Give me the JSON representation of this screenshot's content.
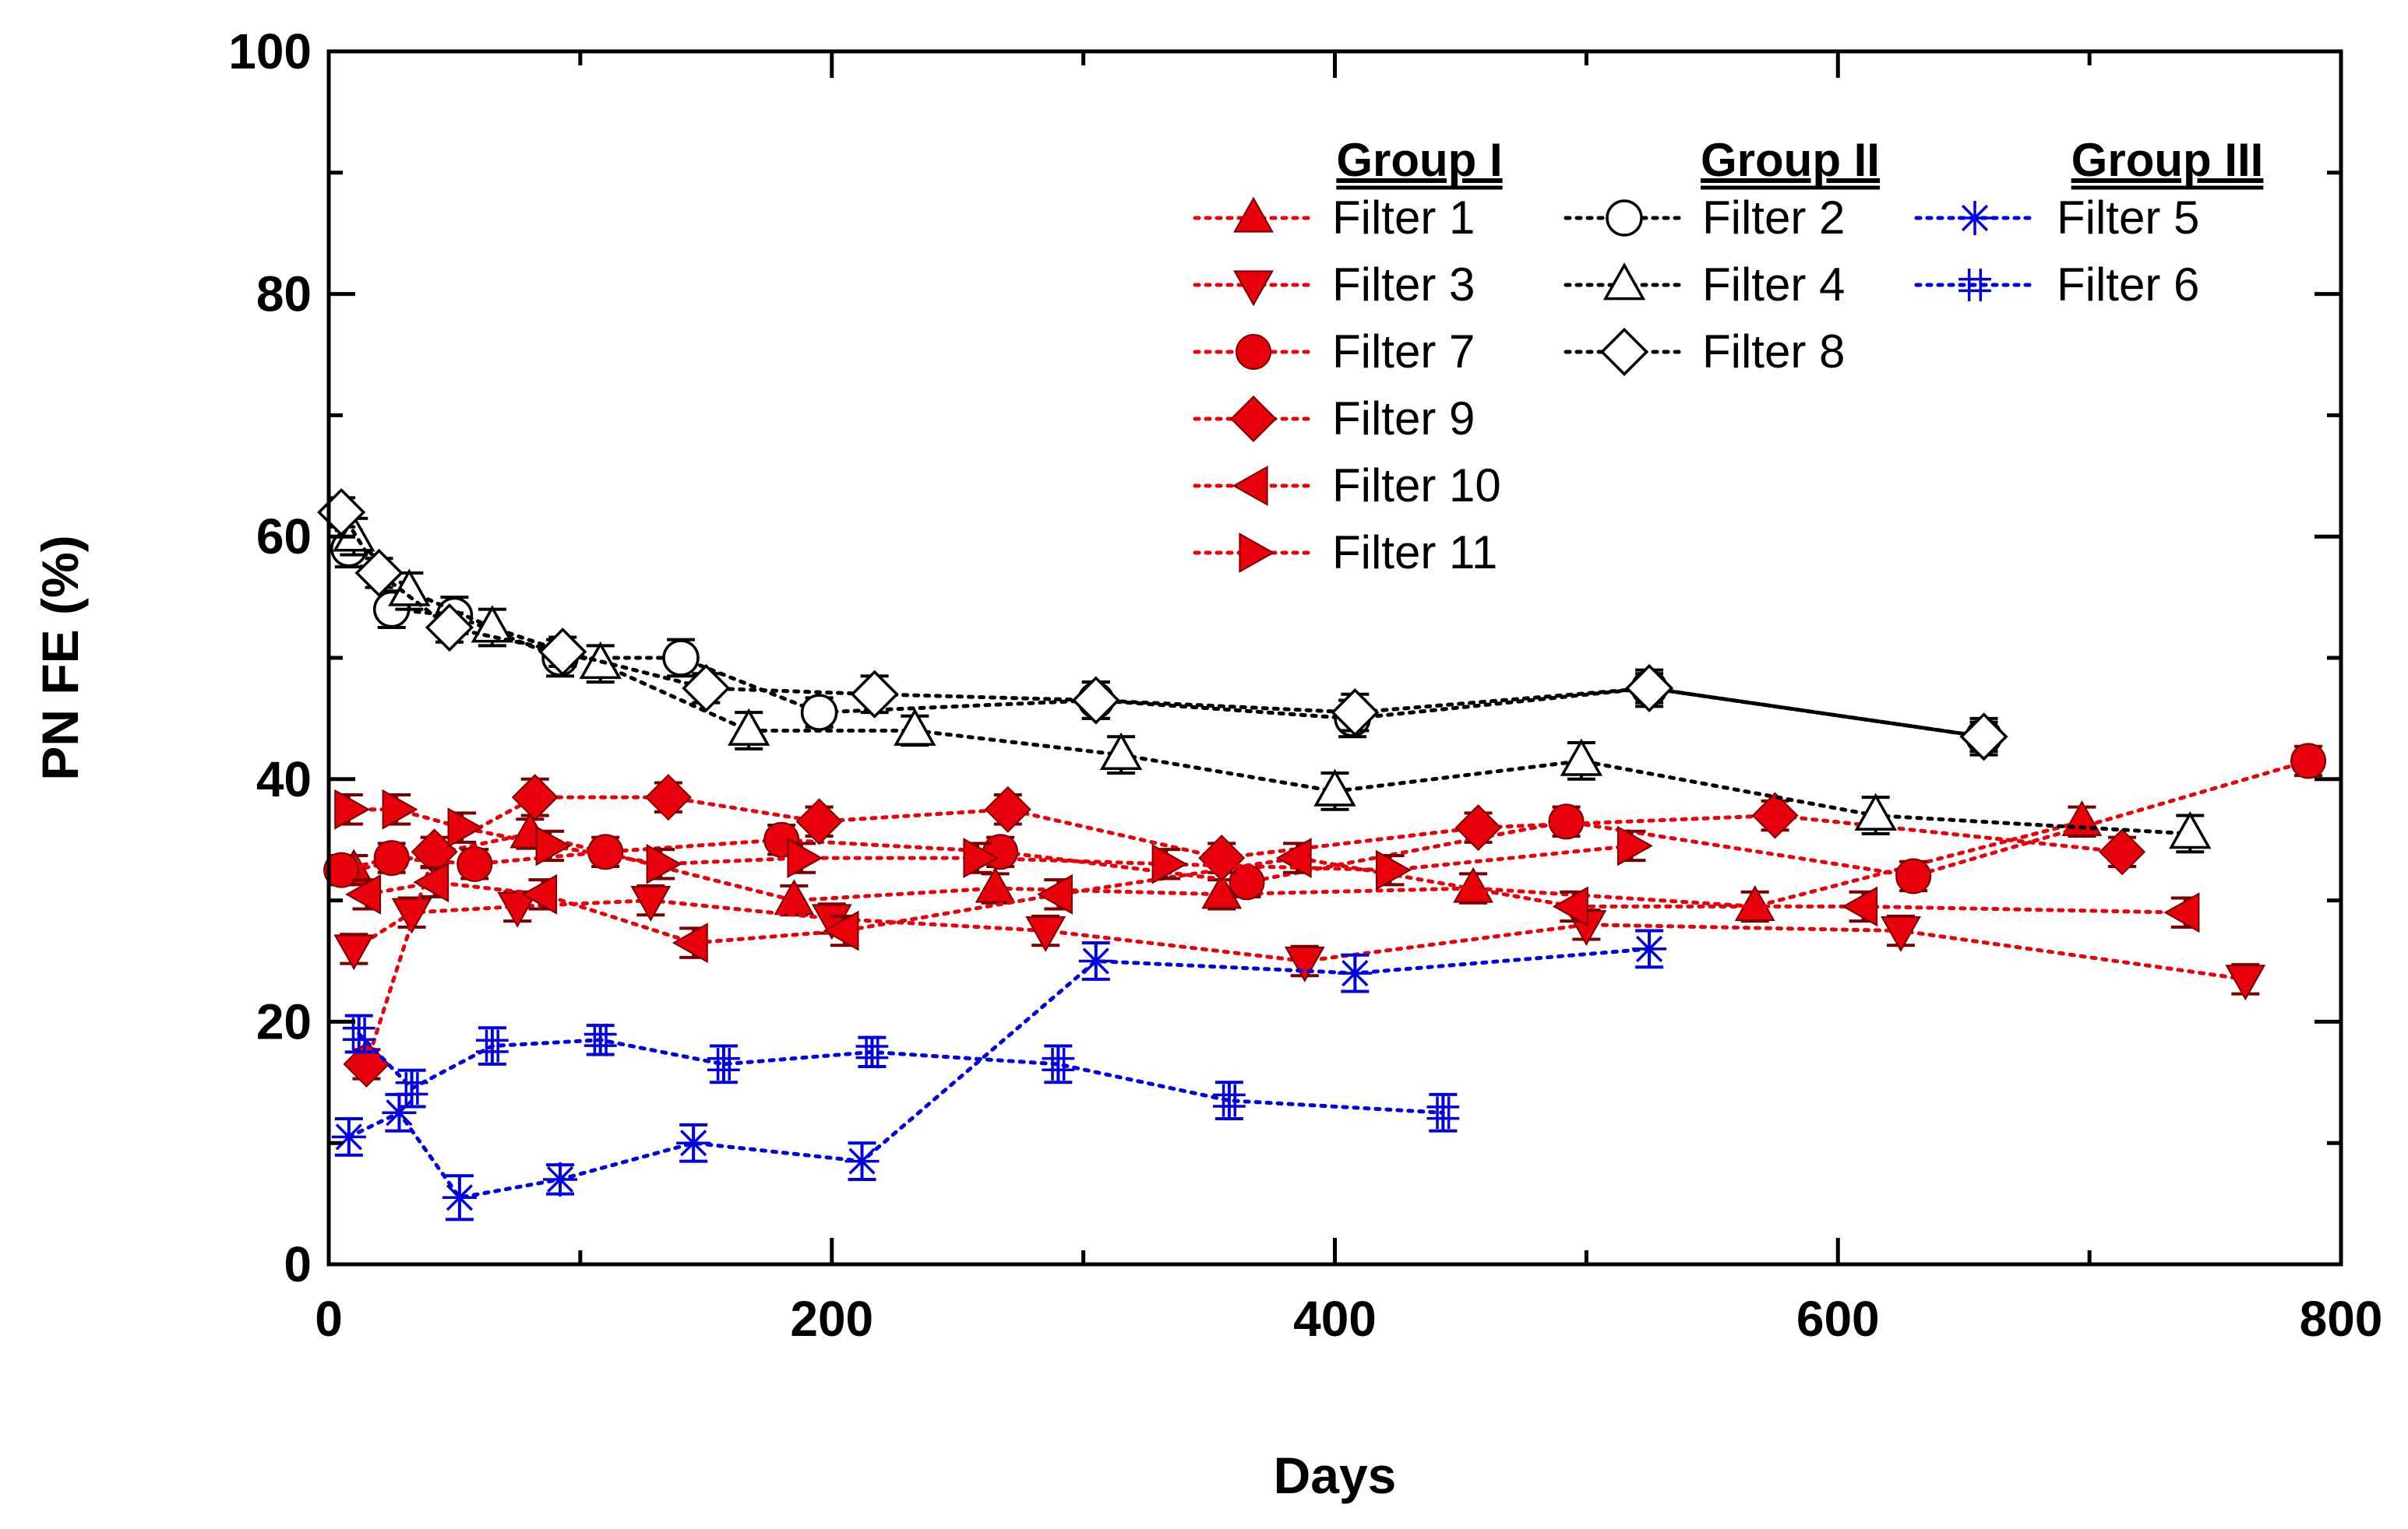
{
  "chart_data": {
    "type": "line",
    "title": "",
    "xlabel": "Days",
    "ylabel": "PN FE (%)",
    "xlim": [
      0,
      800
    ],
    "ylim": [
      0,
      100
    ],
    "x_ticks": [
      0,
      200,
      400,
      600,
      800
    ],
    "y_ticks": [
      0,
      20,
      40,
      60,
      80,
      100
    ],
    "x_tick_labels": [
      "0",
      "200",
      "400",
      "600",
      "800"
    ],
    "y_tick_labels": [
      "0",
      "20",
      "40",
      "60",
      "80",
      "100"
    ],
    "grid": false,
    "legend_position": "top-right",
    "groups": [
      {
        "name": "Group I",
        "series": [
          "Filter 1",
          "Filter 3",
          "Filter 7",
          "Filter 9",
          "Filter 10",
          "Filter 11"
        ]
      },
      {
        "name": "Group II",
        "series": [
          "Filter 2",
          "Filter 4",
          "Filter 8"
        ]
      },
      {
        "name": "Group III",
        "series": [
          "Filter 5",
          "Filter 6"
        ]
      }
    ],
    "series": [
      {
        "name": "Filter 1",
        "group": "Group I",
        "color": "#e8000b",
        "marker": "triangle-up",
        "filled": true,
        "x": [
          10,
          80,
          185,
          265,
          355,
          455,
          567,
          697
        ],
        "y": [
          32.5,
          35.5,
          30,
          31,
          30.5,
          31,
          29.5,
          36.5
        ],
        "err": [
          1.2,
          1.2,
          1.2,
          1.2,
          1.2,
          1.2,
          1.2,
          1.2
        ]
      },
      {
        "name": "Filter 3",
        "group": "Group I",
        "color": "#e8000b",
        "marker": "triangle-down",
        "filled": true,
        "x": [
          10,
          33,
          75,
          128,
          200,
          285,
          388,
          500,
          625,
          762
        ],
        "y": [
          26,
          29,
          29.5,
          30,
          28.5,
          27.5,
          25,
          28,
          27.5,
          23.5
        ],
        "err": [
          1.2,
          1.2,
          1.2,
          1.2,
          1.2,
          1.2,
          1.2,
          1.2,
          1.2,
          1.2
        ]
      },
      {
        "name": "Filter 7",
        "group": "Group I",
        "color": "#e8000b",
        "marker": "circle",
        "filled": true,
        "x": [
          5,
          25,
          58,
          110,
          180,
          267,
          365,
          492,
          630,
          787
        ],
        "y": [
          32.5,
          33.5,
          33,
          34,
          35,
          34,
          31.5,
          36.5,
          32,
          41.5
        ],
        "err": [
          1.2,
          1.2,
          1.2,
          1.2,
          1.2,
          1.2,
          1.2,
          1.2,
          1.2,
          1.2
        ]
      },
      {
        "name": "Filter 9",
        "group": "Group I",
        "color": "#e8000b",
        "marker": "diamond",
        "filled": true,
        "x": [
          15,
          42,
          82,
          135,
          195,
          270,
          355,
          457,
          575,
          713
        ],
        "y": [
          16.5,
          34,
          38.5,
          38.5,
          36.5,
          37.5,
          33.5,
          36,
          37,
          34
        ],
        "err": [
          1.2,
          1.2,
          1.5,
          1.2,
          1.2,
          1.2,
          1.2,
          1.2,
          1.2,
          1.2
        ]
      },
      {
        "name": "Filter 10",
        "group": "Group I",
        "color": "#e8000b",
        "marker": "triangle-left",
        "filled": true,
        "x": [
          15,
          42,
          85,
          145,
          205,
          290,
          385,
          495,
          610,
          738
        ],
        "y": [
          30.5,
          31.5,
          30.5,
          26.5,
          27.5,
          30.5,
          33.5,
          29.5,
          29.5,
          29
        ],
        "err": [
          1.2,
          1.2,
          1.2,
          1.2,
          1.2,
          1.2,
          1.2,
          1.2,
          1.2,
          1.2
        ]
      },
      {
        "name": "Filter 11",
        "group": "Group I",
        "color": "#e8000b",
        "marker": "triangle-right",
        "filled": true,
        "x": [
          8,
          27,
          53,
          88,
          132,
          188,
          258,
          333,
          422,
          518
        ],
        "y": [
          37.5,
          37.5,
          36,
          34.5,
          33,
          33.5,
          33.5,
          33,
          32.5,
          34.5
        ],
        "err": [
          1.2,
          1.2,
          1.2,
          1.2,
          1.2,
          1.2,
          1.2,
          1.2,
          1.2,
          1.2
        ]
      },
      {
        "name": "Filter 2",
        "group": "Group II",
        "color": "#000000",
        "marker": "circle",
        "filled": false,
        "x": [
          8,
          25,
          50,
          92,
          140,
          195,
          305,
          407,
          525,
          658
        ],
        "y": [
          59,
          54,
          53.5,
          50,
          50,
          45.5,
          46.5,
          45,
          47.5,
          43.5
        ],
        "err": [
          1.5,
          1.5,
          1.5,
          1.5,
          1.5,
          1.2,
          1.5,
          1.5,
          1.5,
          1.5
        ]
      },
      {
        "name": "Filter 4",
        "group": "Group II",
        "color": "#000000",
        "marker": "triangle-up",
        "filled": false,
        "x": [
          10,
          32,
          65,
          108,
          167,
          233,
          315,
          400,
          498,
          615,
          740
        ],
        "y": [
          60,
          55.5,
          52.5,
          49.5,
          44,
          44,
          42,
          39,
          41.5,
          37,
          35.5
        ],
        "err": [
          1.5,
          1.5,
          1.5,
          1.5,
          1.5,
          1.2,
          1.5,
          1.5,
          1.5,
          1.5,
          1.5
        ]
      },
      {
        "name": "Filter 8",
        "group": "Group II",
        "color": "#000000",
        "marker": "diamond",
        "filled": false,
        "x": [
          5,
          20,
          48,
          93,
          150,
          217,
          305,
          408,
          525,
          658
        ],
        "y": [
          62,
          57,
          52.5,
          50.5,
          47.5,
          47,
          46.5,
          45.5,
          47.5,
          43.5
        ],
        "err": [
          1.2,
          1.2,
          1.2,
          1.2,
          1.2,
          1.5,
          1.5,
          1.5,
          1.2,
          1.2
        ]
      },
      {
        "name": "Filter 5",
        "group": "Group III",
        "color": "#0000e0",
        "marker": "star",
        "filled": false,
        "x": [
          8,
          28,
          52,
          92,
          145,
          212,
          305,
          408,
          525
        ],
        "y": [
          10.5,
          12.5,
          5.5,
          7,
          10,
          8.5,
          25,
          24,
          26
        ],
        "err": [
          1.5,
          1.5,
          1.8,
          1.2,
          1.5,
          1.5,
          1.5,
          1.5,
          1.5
        ]
      },
      {
        "name": "Filter 6",
        "group": "Group III",
        "color": "#0000e0",
        "marker": "hash",
        "filled": false,
        "x": [
          12,
          33,
          65,
          108,
          157,
          216,
          290,
          358,
          443
        ],
        "y": [
          19,
          14.5,
          18,
          18.5,
          16.5,
          17.5,
          16.5,
          13.5,
          12.5
        ],
        "err": [
          1.5,
          1.5,
          1.5,
          1.2,
          1.5,
          1.2,
          1.5,
          1.5,
          1.5
        ]
      }
    ]
  }
}
